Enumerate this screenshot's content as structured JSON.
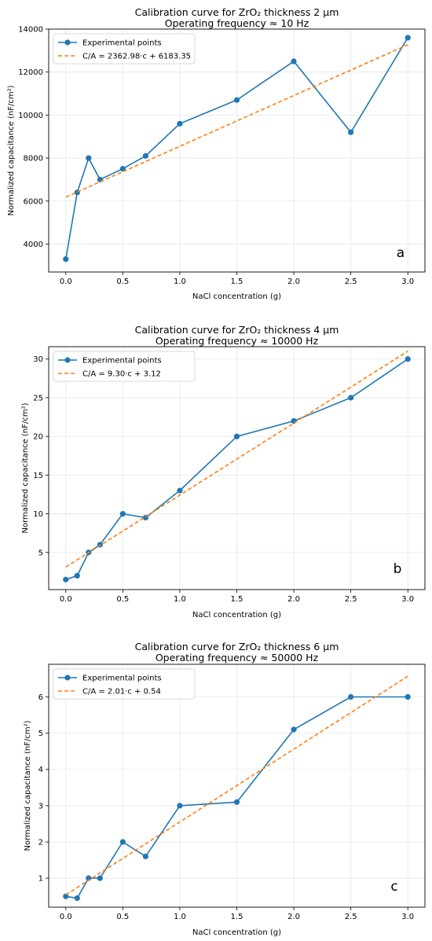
{
  "colors": {
    "experimental": "#1f77b4",
    "fit": "#ff7f0e",
    "grid": "#e6e6e6"
  },
  "chart_data": [
    {
      "type": "line",
      "title_line1": "Calibration curve for ZrO₂ thickness 2 μm",
      "title_line2": "Operating frequency ≈ 10 Hz",
      "xlabel": "NaCl concentration (g)",
      "ylabel": "Normalized capacitance (nF/cm²)",
      "panel_letter": "a",
      "xlim": [
        -0.15,
        3.15
      ],
      "ylim": [
        2700,
        14000
      ],
      "xticks": [
        0.0,
        0.5,
        1.0,
        1.5,
        2.0,
        2.5,
        3.0
      ],
      "xtick_labels": [
        "0.0",
        "0.5",
        "1.0",
        "1.5",
        "2.0",
        "2.5",
        "3.0"
      ],
      "yticks": [
        4000,
        6000,
        8000,
        10000,
        12000,
        14000
      ],
      "ytick_labels": [
        "4000",
        "6000",
        "8000",
        "10000",
        "12000",
        "14000"
      ],
      "grid": true,
      "legend_position": "top-left",
      "series": [
        {
          "name": "Experimental points",
          "style": "line-marker",
          "x": [
            0.0,
            0.1,
            0.2,
            0.3,
            0.5,
            0.7,
            1.0,
            1.5,
            2.0,
            2.5,
            3.0
          ],
          "y": [
            3300,
            6400,
            8000,
            7000,
            7500,
            8100,
            9600,
            10700,
            12500,
            9200,
            13600
          ]
        },
        {
          "name": "C/A = 2362.98·c + 6183.35",
          "style": "dashed",
          "x": [
            0.0,
            3.0
          ],
          "y": [
            6183.35,
            13272.29
          ]
        }
      ]
    },
    {
      "type": "line",
      "title_line1": "Calibration curve for ZrO₂ thickness 4 μm",
      "title_line2": "Operating frequency ≈ 10000 Hz",
      "xlabel": "NaCl concentration (g)",
      "ylabel": "Normalized capacitance (nF/cm²)",
      "panel_letter": "b",
      "xlim": [
        -0.15,
        3.15
      ],
      "ylim": [
        0.2,
        31.6
      ],
      "xticks": [
        0.0,
        0.5,
        1.0,
        1.5,
        2.0,
        2.5,
        3.0
      ],
      "xtick_labels": [
        "0.0",
        "0.5",
        "1.0",
        "1.5",
        "2.0",
        "2.5",
        "3.0"
      ],
      "yticks": [
        5,
        10,
        15,
        20,
        25,
        30
      ],
      "ytick_labels": [
        "5",
        "10",
        "15",
        "20",
        "25",
        "30"
      ],
      "grid": true,
      "legend_position": "top-left",
      "series": [
        {
          "name": "Experimental points",
          "style": "line-marker",
          "x": [
            0.0,
            0.1,
            0.2,
            0.3,
            0.5,
            0.7,
            1.0,
            1.5,
            2.0,
            2.5,
            3.0
          ],
          "y": [
            1.5,
            2.0,
            5.0,
            6.0,
            10.0,
            9.5,
            13.0,
            20.0,
            22.0,
            25.0,
            30.0
          ]
        },
        {
          "name": "C/A = 9.30·c + 3.12",
          "style": "dashed",
          "x": [
            0.0,
            3.0
          ],
          "y": [
            3.12,
            31.02
          ]
        }
      ]
    },
    {
      "type": "line",
      "title_line1": "Calibration curve for ZrO₂ thickness 6 μm",
      "title_line2": "Operating frequency ≈ 50000 Hz",
      "xlabel": "NaCl concentration (g)",
      "ylabel": "Normalized capacitance (nF/cm²)",
      "panel_letter": "c",
      "xlim": [
        -0.15,
        3.15
      ],
      "ylim": [
        0.2,
        6.9
      ],
      "xticks": [
        0.0,
        0.5,
        1.0,
        1.5,
        2.0,
        2.5,
        3.0
      ],
      "xtick_labels": [
        "0.0",
        "0.5",
        "1.0",
        "1.5",
        "2.0",
        "2.5",
        "3.0"
      ],
      "yticks": [
        1,
        2,
        3,
        4,
        5,
        6
      ],
      "ytick_labels": [
        "1",
        "2",
        "3",
        "4",
        "5",
        "6"
      ],
      "grid": true,
      "legend_position": "top-left",
      "series": [
        {
          "name": "Experimental points",
          "style": "line-marker",
          "x": [
            0.0,
            0.1,
            0.2,
            0.3,
            0.5,
            0.7,
            1.0,
            1.5,
            2.0,
            2.5,
            3.0
          ],
          "y": [
            0.5,
            0.45,
            1.0,
            1.0,
            2.0,
            1.6,
            3.0,
            3.1,
            5.1,
            6.0,
            6.0
          ]
        },
        {
          "name": "C/A = 2.01·c + 0.54",
          "style": "dashed",
          "x": [
            0.0,
            3.0
          ],
          "y": [
            0.54,
            6.57
          ]
        }
      ]
    }
  ]
}
